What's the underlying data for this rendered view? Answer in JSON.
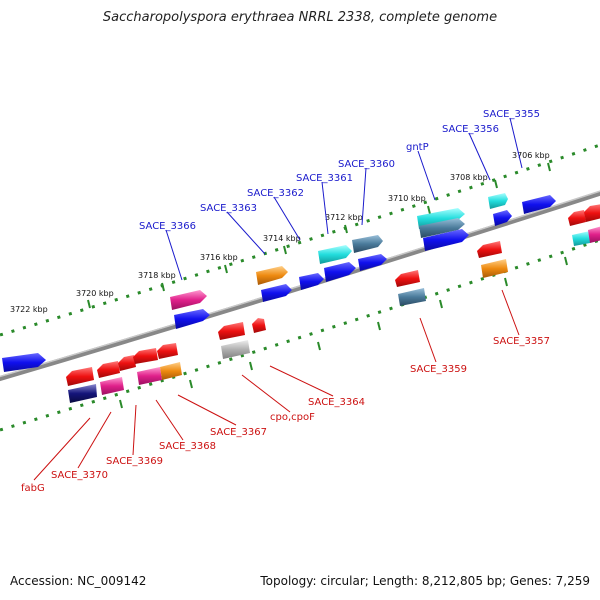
{
  "title": "Saccharopolyspora erythraea NRRL 2338, complete genome",
  "footer": {
    "accession": "Accession: NC_009142",
    "info": "Topology: circular; Length: 8,212,805 bp; Genes: 7,259"
  },
  "colors": {
    "forward_label": "#1a1acc",
    "reverse_label": "#cc1111",
    "backbone": "#888888",
    "ticks": "#2a8a2a",
    "blue": "#1010ee",
    "cyan": "#22cccc",
    "steel": "#4a7a9a",
    "red": "#ee1111",
    "pink": "#e0208a",
    "orange": "#ee8a10",
    "gray": "#b0b0b0"
  },
  "ruler": [
    {
      "label": "3722 kbp"
    },
    {
      "label": "3720 kbp"
    },
    {
      "label": "3718 kbp"
    },
    {
      "label": "3716 kbp"
    },
    {
      "label": "3714 kbp"
    },
    {
      "label": "3712 kbp"
    },
    {
      "label": "3710 kbp"
    },
    {
      "label": "3708 kbp"
    },
    {
      "label": "3706 kbp"
    }
  ],
  "forward_labels": [
    {
      "name": "SACE_3366"
    },
    {
      "name": "SACE_3363"
    },
    {
      "name": "SACE_3362"
    },
    {
      "name": "SACE_3361"
    },
    {
      "name": "SACE_3360"
    },
    {
      "name": "gntP"
    },
    {
      "name": "SACE_3356"
    },
    {
      "name": "SACE_3355"
    }
  ],
  "reverse_labels": [
    {
      "name": "fabG"
    },
    {
      "name": "SACE_3370"
    },
    {
      "name": "SACE_3369"
    },
    {
      "name": "SACE_3368"
    },
    {
      "name": "SACE_3367"
    },
    {
      "name": "cpo,cpoF"
    },
    {
      "name": "SACE_3364"
    },
    {
      "name": "SACE_3359"
    },
    {
      "name": "SACE_3357"
    }
  ]
}
